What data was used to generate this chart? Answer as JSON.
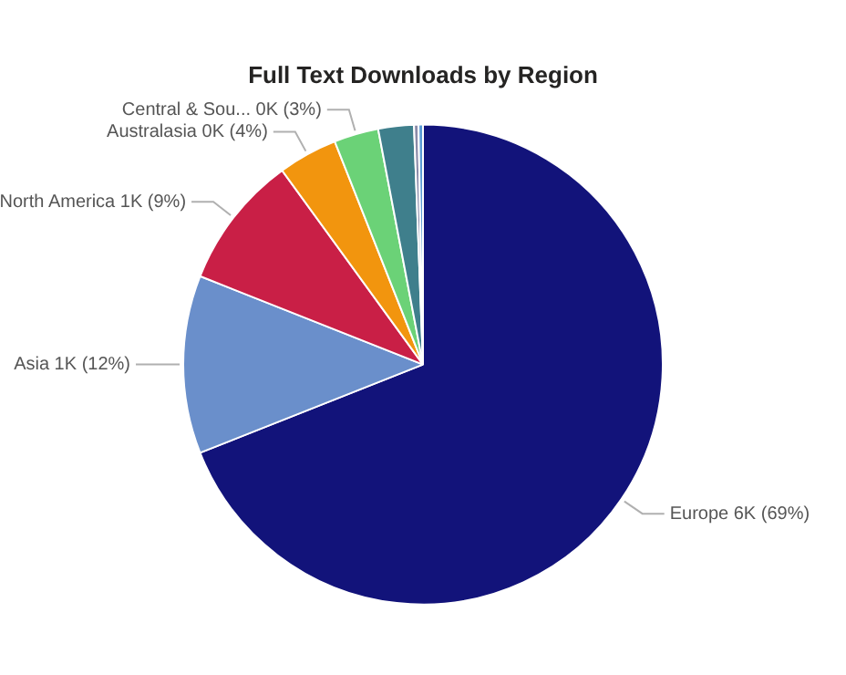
{
  "chart_data": {
    "type": "pie",
    "title": "Full Text Downloads by Region",
    "categories": [
      "Europe",
      "Asia",
      "North America",
      "Australasia",
      "Central & Sou...",
      null,
      null,
      null
    ],
    "values": [
      69,
      12,
      9,
      4,
      3,
      2.4,
      0.3,
      0.3
    ],
    "colors": [
      "#12137a",
      "#6a8fcb",
      "#c91f46",
      "#f2950e",
      "#6bd277",
      "#3f7f8c",
      "#8a8aa8",
      "#5a9bd5"
    ],
    "value_labels": [
      "6K (69%)",
      "1K (12%)",
      "1K (9%)",
      "0K (4%)",
      "0K (3%)",
      null,
      null,
      null
    ],
    "legend": false
  }
}
